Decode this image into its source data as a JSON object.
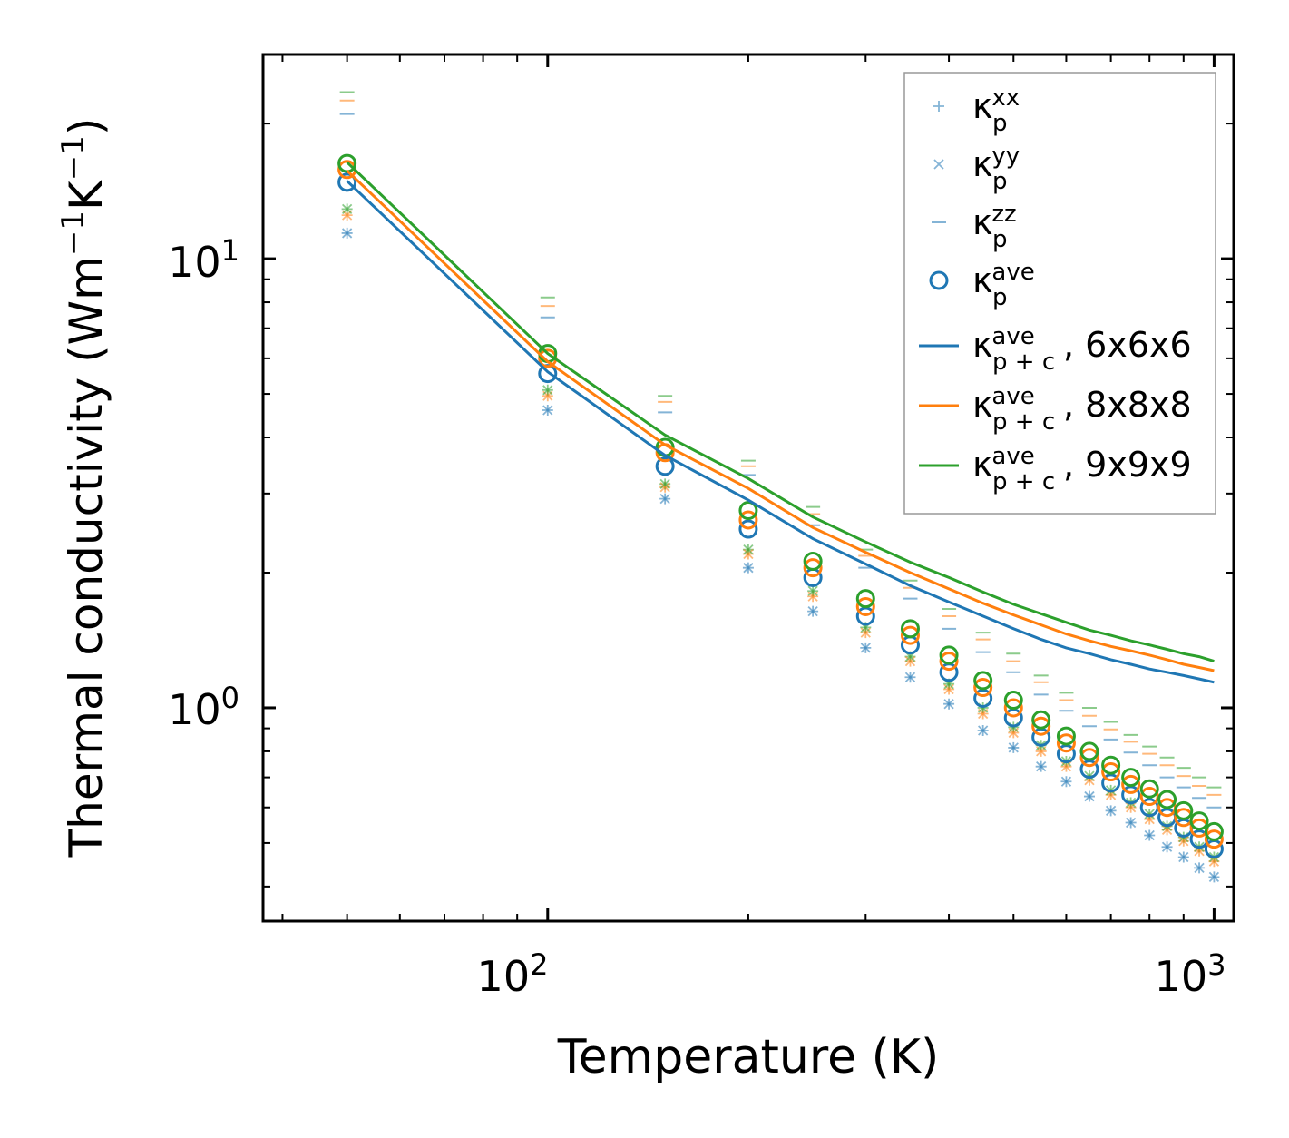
{
  "chart_data": {
    "type": "scatter",
    "xscale": "log",
    "yscale": "log",
    "xlim": [
      37.4,
      1070
    ],
    "ylim": [
      0.335,
      28.5
    ],
    "xlabel": "Temperature (K)",
    "ylabel": "Thermal conductivity (Wm",
    "ylabel_sup1": "−1",
    "ylabel_mid": "K",
    "ylabel_sup2": "−1",
    "ylabel_end": ")",
    "x_ticks": [
      {
        "base": "10",
        "exp": "2",
        "value": 100
      },
      {
        "base": "10",
        "exp": "3",
        "value": 1000
      }
    ],
    "y_ticks": [
      {
        "base": "10",
        "exp": "0",
        "value": 1
      },
      {
        "base": "10",
        "exp": "1",
        "value": 10
      }
    ],
    "temperatures": [
      50,
      100,
      150,
      200,
      250,
      300,
      350,
      400,
      450,
      500,
      550,
      600,
      650,
      700,
      750,
      800,
      850,
      900,
      950,
      1000
    ],
    "colors": {
      "6x6x6": "#1f77b4",
      "8x8x8": "#ff7f0e",
      "9x9x9": "#2ca02c"
    },
    "series": [
      {
        "name": "6x6x6",
        "kind": "kappa_p_xx",
        "values": [
          11.4,
          4.6,
          2.92,
          2.05,
          1.64,
          1.36,
          1.17,
          1.02,
          0.89,
          0.815,
          0.74,
          0.685,
          0.635,
          0.59,
          0.555,
          0.52,
          0.49,
          0.465,
          0.44,
          0.42
        ]
      },
      {
        "name": "6x6x6",
        "kind": "kappa_p_yy",
        "values": [
          11.4,
          4.6,
          2.92,
          2.05,
          1.64,
          1.36,
          1.17,
          1.02,
          0.89,
          0.815,
          0.74,
          0.685,
          0.635,
          0.59,
          0.555,
          0.52,
          0.49,
          0.465,
          0.44,
          0.42
        ]
      },
      {
        "name": "6x6x6",
        "kind": "kappa_p_zz",
        "values": [
          21.0,
          7.4,
          4.55,
          3.3,
          2.55,
          2.05,
          1.75,
          1.5,
          1.33,
          1.2,
          1.07,
          0.985,
          0.91,
          0.85,
          0.795,
          0.745,
          0.7,
          0.665,
          0.63,
          0.6
        ]
      },
      {
        "name": "6x6x6",
        "kind": "kappa_p_ave",
        "values": [
          14.8,
          5.55,
          3.45,
          2.5,
          1.95,
          1.6,
          1.38,
          1.2,
          1.05,
          0.95,
          0.86,
          0.79,
          0.73,
          0.68,
          0.64,
          0.6,
          0.57,
          0.54,
          0.51,
          0.485
        ]
      },
      {
        "name": "8x8x8",
        "kind": "kappa_p_xx",
        "values": [
          12.5,
          4.95,
          3.1,
          2.2,
          1.77,
          1.47,
          1.27,
          1.1,
          0.97,
          0.88,
          0.8,
          0.74,
          0.69,
          0.64,
          0.6,
          0.565,
          0.535,
          0.505,
          0.48,
          0.455
        ]
      },
      {
        "name": "8x8x8",
        "kind": "kappa_p_yy",
        "values": [
          12.5,
          4.95,
          3.1,
          2.2,
          1.77,
          1.47,
          1.27,
          1.1,
          0.97,
          0.88,
          0.8,
          0.74,
          0.69,
          0.64,
          0.6,
          0.565,
          0.535,
          0.505,
          0.48,
          0.455
        ]
      },
      {
        "name": "8x8x8",
        "kind": "kappa_p_zz",
        "values": [
          22.5,
          7.85,
          4.8,
          3.45,
          2.7,
          2.18,
          1.85,
          1.6,
          1.42,
          1.27,
          1.14,
          1.04,
          0.96,
          0.895,
          0.84,
          0.79,
          0.745,
          0.705,
          0.67,
          0.64
        ]
      },
      {
        "name": "8x8x8",
        "kind": "kappa_p_ave",
        "values": [
          15.8,
          6.0,
          3.7,
          2.62,
          2.05,
          1.68,
          1.45,
          1.27,
          1.11,
          1.0,
          0.91,
          0.835,
          0.775,
          0.72,
          0.675,
          0.635,
          0.6,
          0.57,
          0.54,
          0.51
        ]
      },
      {
        "name": "9x9x9",
        "kind": "kappa_p_xx",
        "values": [
          12.9,
          5.1,
          3.15,
          2.25,
          1.82,
          1.51,
          1.3,
          1.13,
          1.0,
          0.905,
          0.825,
          0.76,
          0.705,
          0.655,
          0.615,
          0.58,
          0.545,
          0.515,
          0.49,
          0.465
        ]
      },
      {
        "name": "9x9x9",
        "kind": "kappa_p_yy",
        "values": [
          12.9,
          5.1,
          3.15,
          2.25,
          1.82,
          1.51,
          1.3,
          1.13,
          1.0,
          0.905,
          0.825,
          0.76,
          0.705,
          0.655,
          0.615,
          0.58,
          0.545,
          0.515,
          0.49,
          0.465
        ]
      },
      {
        "name": "9x9x9",
        "kind": "kappa_p_zz",
        "values": [
          23.5,
          8.2,
          4.95,
          3.55,
          2.8,
          2.25,
          1.92,
          1.66,
          1.47,
          1.32,
          1.18,
          1.08,
          1.0,
          0.93,
          0.87,
          0.82,
          0.775,
          0.735,
          0.7,
          0.665
        ]
      },
      {
        "name": "9x9x9",
        "kind": "kappa_p_ave",
        "values": [
          16.3,
          6.15,
          3.8,
          2.75,
          2.12,
          1.75,
          1.5,
          1.31,
          1.15,
          1.04,
          0.94,
          0.865,
          0.8,
          0.745,
          0.7,
          0.66,
          0.625,
          0.59,
          0.56,
          0.53
        ]
      },
      {
        "name": "6x6x6",
        "kind": "kappa_pc_ave",
        "values": [
          14.9,
          5.6,
          3.65,
          2.9,
          2.38,
          2.09,
          1.87,
          1.72,
          1.6,
          1.5,
          1.42,
          1.36,
          1.32,
          1.28,
          1.25,
          1.22,
          1.2,
          1.18,
          1.16,
          1.14
        ]
      },
      {
        "name": "8x8x8",
        "kind": "kappa_pc_ave",
        "values": [
          15.7,
          5.9,
          3.85,
          3.08,
          2.52,
          2.22,
          2.0,
          1.84,
          1.71,
          1.61,
          1.53,
          1.46,
          1.41,
          1.37,
          1.34,
          1.31,
          1.28,
          1.25,
          1.23,
          1.21
        ]
      },
      {
        "name": "9x9x9",
        "kind": "kappa_pc_ave",
        "values": [
          16.4,
          6.15,
          4.05,
          3.24,
          2.66,
          2.34,
          2.11,
          1.95,
          1.81,
          1.7,
          1.62,
          1.55,
          1.49,
          1.45,
          1.41,
          1.38,
          1.35,
          1.32,
          1.3,
          1.27
        ]
      }
    ],
    "legend": {
      "placement": "top-right",
      "entries": [
        {
          "marker": "plus",
          "color": "#1f77b4",
          "sym": "κ",
          "sub": "p",
          "sup": "xx",
          "suffix": ""
        },
        {
          "marker": "x",
          "color": "#1f77b4",
          "sym": "κ",
          "sub": "p",
          "sup": "yy",
          "suffix": ""
        },
        {
          "marker": "dash",
          "color": "#1f77b4",
          "sym": "κ",
          "sub": "p",
          "sup": "zz",
          "suffix": ""
        },
        {
          "marker": "circle",
          "color": "#1f77b4",
          "sym": "κ",
          "sub": "p",
          "sup": "ave",
          "suffix": ""
        },
        {
          "marker": "line",
          "color": "#1f77b4",
          "sym": "κ",
          "sub": "p + c",
          "sup": "ave",
          "suffix": ", 6x6x6"
        },
        {
          "marker": "line",
          "color": "#ff7f0e",
          "sym": "κ",
          "sub": "p + c",
          "sup": "ave",
          "suffix": ", 8x8x8"
        },
        {
          "marker": "line",
          "color": "#2ca02c",
          "sym": "κ",
          "sub": "p + c",
          "sup": "ave",
          "suffix": ", 9x9x9"
        }
      ]
    }
  }
}
